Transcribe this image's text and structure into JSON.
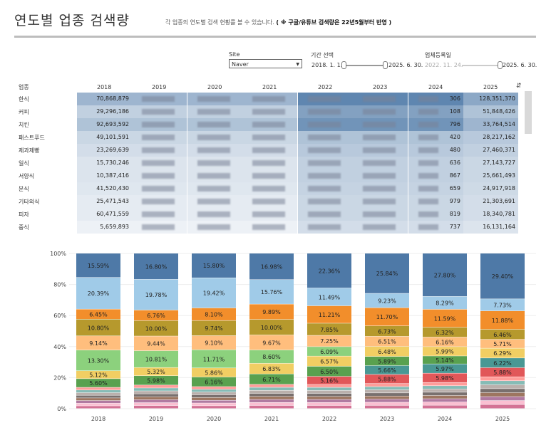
{
  "header": {
    "title": "연도별 업종 검색량",
    "subtitle_normal": "각 업종의 연도별 검색 현황를 볼 수 있습니다.",
    "subtitle_bold": "( ※ 구글/유튜브 검색량은 22년5월부터 반영 )"
  },
  "filters": {
    "site_label": "Site",
    "site_value": "Naver",
    "period_label": "기간 선택",
    "period_start": "2018. 1. 1.",
    "period_end": "2025. 6. 30.",
    "reg_label": "업체등록일",
    "reg_start": "2022. 11. 24.",
    "reg_end": "2025. 6. 30."
  },
  "table": {
    "category_header": "업종",
    "years": [
      "2018",
      "2019",
      "2020",
      "2021",
      "2022",
      "2023",
      "2024",
      "2025"
    ],
    "rows": [
      {
        "category": "한식",
        "v2018": "70,868,879",
        "v2024_tail": "306",
        "v2025": "128,351,370",
        "shade": 0.55
      },
      {
        "category": "커피",
        "v2018": "29,296,186",
        "v2024_tail": "108",
        "v2025": "51,848,426",
        "shade": 0.35
      },
      {
        "category": "치킨",
        "v2018": "92,693,592",
        "v2024_tail": "796",
        "v2025": "33,764,514",
        "shade": 0.45
      },
      {
        "category": "패스트푸드",
        "v2018": "49,101,591",
        "v2024_tail": "420",
        "v2025": "28,217,162",
        "shade": 0.3
      },
      {
        "category": "제과제빵",
        "v2018": "23,269,639",
        "v2024_tail": "480",
        "v2025": "27,460,371",
        "shade": 0.25
      },
      {
        "category": "일식",
        "v2018": "15,730,246",
        "v2024_tail": "636",
        "v2025": "27,143,727",
        "shade": 0.2
      },
      {
        "category": "서양식",
        "v2018": "10,387,416",
        "v2024_tail": "867",
        "v2025": "25,661,493",
        "shade": 0.2
      },
      {
        "category": "분식",
        "v2018": "41,520,430",
        "v2024_tail": "659",
        "v2025": "24,917,918",
        "shade": 0.18
      },
      {
        "category": "기타외식",
        "v2018": "25,471,543",
        "v2024_tail": "979",
        "v2025": "21,303,691",
        "shade": 0.15
      },
      {
        "category": "피자",
        "v2018": "60,471,559",
        "v2024_tail": "819",
        "v2025": "18,340,781",
        "shade": 0.15
      },
      {
        "category": "중식",
        "v2018": "5,659,893",
        "v2024_tail": "737",
        "v2025": "16,131,164",
        "shade": 0.1
      }
    ]
  },
  "colors": {
    "header_blue": "#4e79a7",
    "light_blue": "#a0cbe8",
    "orange": "#f28e2b",
    "olive": "#b6992d",
    "peach": "#ffbe7d",
    "green_light": "#8cd17d",
    "yellow": "#f1ce63",
    "green": "#59a14f",
    "teal": "#499894",
    "red": "#e15759"
  },
  "chart_data": {
    "type": "bar",
    "stacked": true,
    "ylim": [
      0,
      100
    ],
    "yticks": [
      "0%",
      "20%",
      "40%",
      "60%",
      "80%",
      "100%"
    ],
    "categories": [
      "2018",
      "2019",
      "2020",
      "2021",
      "2022",
      "2023",
      "2024",
      "2025"
    ],
    "series": [
      {
        "color": "#e15759",
        "values": [
          0,
          0,
          0,
          0,
          5.16,
          5.88,
          5.98,
          5.88
        ],
        "labels": [
          "",
          "",
          "",
          "",
          "5.16%",
          "5.88%",
          "5.98%",
          "5.88%"
        ]
      },
      {
        "color": "#499894",
        "values": [
          0,
          0,
          0,
          0,
          0,
          5.66,
          5.97,
          6.22
        ],
        "labels": [
          "",
          "",
          "",
          "",
          "",
          "5.66%",
          "5.97%",
          "6.22%"
        ]
      },
      {
        "color": "#59a14f",
        "values": [
          5.6,
          5.98,
          6.16,
          6.71,
          6.5,
          5.89,
          5.14,
          0
        ],
        "labels": [
          "5.60%",
          "5.98%",
          "6.16%",
          "6.71%",
          "6.50%",
          "5.89%",
          "5.14%",
          ""
        ]
      },
      {
        "color": "#f1ce63",
        "values": [
          5.12,
          5.32,
          5.86,
          6.83,
          6.57,
          6.48,
          5.99,
          6.29
        ],
        "labels": [
          "5.12%",
          "5.32%",
          "5.86%",
          "6.83%",
          "6.57%",
          "6.48%",
          "5.99%",
          "6.29%"
        ]
      },
      {
        "color": "#8cd17d",
        "values": [
          13.3,
          10.81,
          11.71,
          8.6,
          6.09,
          0,
          0,
          0
        ],
        "labels": [
          "13.30%",
          "10.81%",
          "11.71%",
          "8.60%",
          "6.09%",
          "",
          "",
          ""
        ]
      },
      {
        "color": "#ffbe7d",
        "values": [
          9.14,
          9.44,
          9.1,
          9.67,
          7.25,
          6.51,
          6.16,
          5.71
        ],
        "labels": [
          "9.14%",
          "9.44%",
          "9.10%",
          "9.67%",
          "7.25%",
          "6.51%",
          "6.16%",
          "5.71%"
        ]
      },
      {
        "color": "#b6992d",
        "values": [
          10.8,
          10.0,
          9.74,
          10.0,
          7.85,
          6.73,
          6.32,
          6.46
        ],
        "labels": [
          "10.80%",
          "10.00%",
          "9.74%",
          "10.00%",
          "7.85%",
          "6.73%",
          "6.32%",
          "6.46%"
        ]
      },
      {
        "color": "#f28e2b",
        "values": [
          6.45,
          6.76,
          8.1,
          9.89,
          11.21,
          11.7,
          11.59,
          11.88
        ],
        "labels": [
          "6.45%",
          "6.76%",
          "8.10%",
          "9.89%",
          "11.21%",
          "11.70%",
          "11.59%",
          "11.88%"
        ]
      },
      {
        "color": "#a0cbe8",
        "values": [
          20.39,
          19.78,
          19.42,
          15.76,
          11.49,
          9.23,
          8.29,
          7.73
        ],
        "labels": [
          "20.39%",
          "19.78%",
          "19.42%",
          "15.76%",
          "11.49%",
          "9.23%",
          "8.29%",
          "7.73%"
        ]
      },
      {
        "color": "#4e79a7",
        "values": [
          15.59,
          16.8,
          15.8,
          16.98,
          22.36,
          25.84,
          27.8,
          29.4
        ],
        "labels": [
          "15.59%",
          "16.80%",
          "15.80%",
          "16.98%",
          "22.36%",
          "25.84%",
          "27.80%",
          "29.40%"
        ]
      }
    ]
  }
}
